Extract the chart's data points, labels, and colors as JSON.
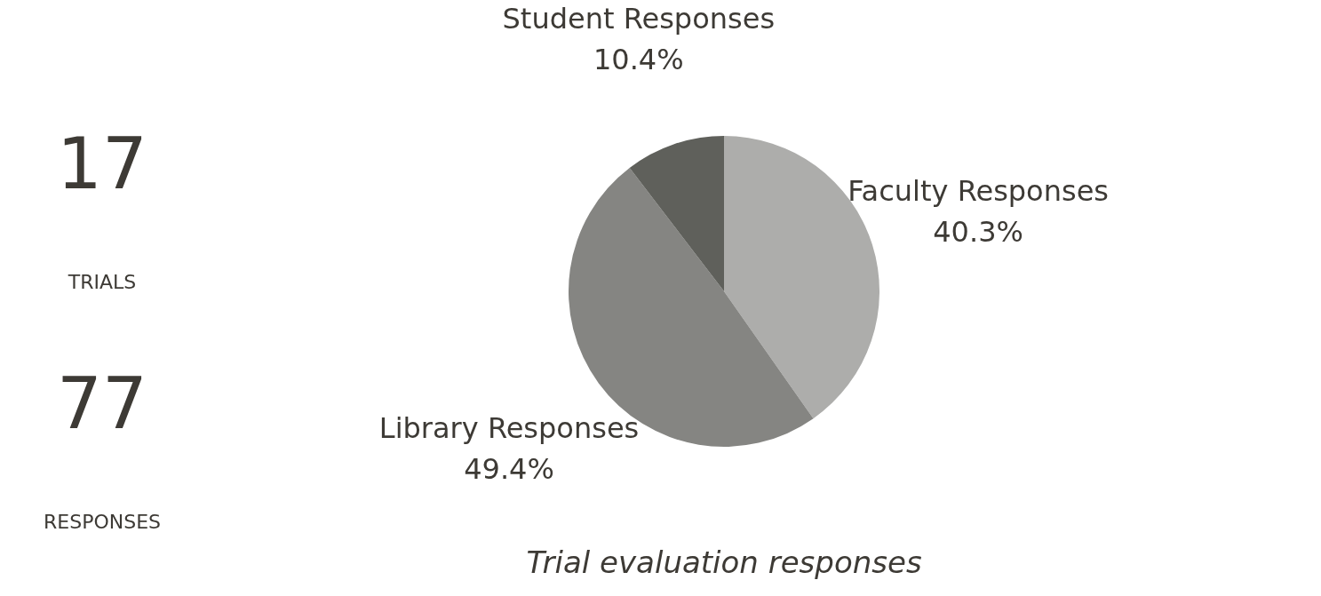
{
  "chart_data": [
    {
      "type": "other",
      "annotations": [
        "17",
        "TRIALS",
        "77",
        "RESPONSES"
      ]
    },
    {
      "type": "pie",
      "title": "Trial evaluation responses",
      "categories": [
        "Faculty Responses",
        "Library Responses",
        "Student Responses"
      ],
      "values": [
        40.3,
        49.4,
        10.4
      ],
      "colors": [
        "#adadab",
        "#858582",
        "#5f605b"
      ],
      "value_labels": [
        "40.3%",
        "49.4%",
        "10.4%"
      ],
      "legend": false
    }
  ]
}
